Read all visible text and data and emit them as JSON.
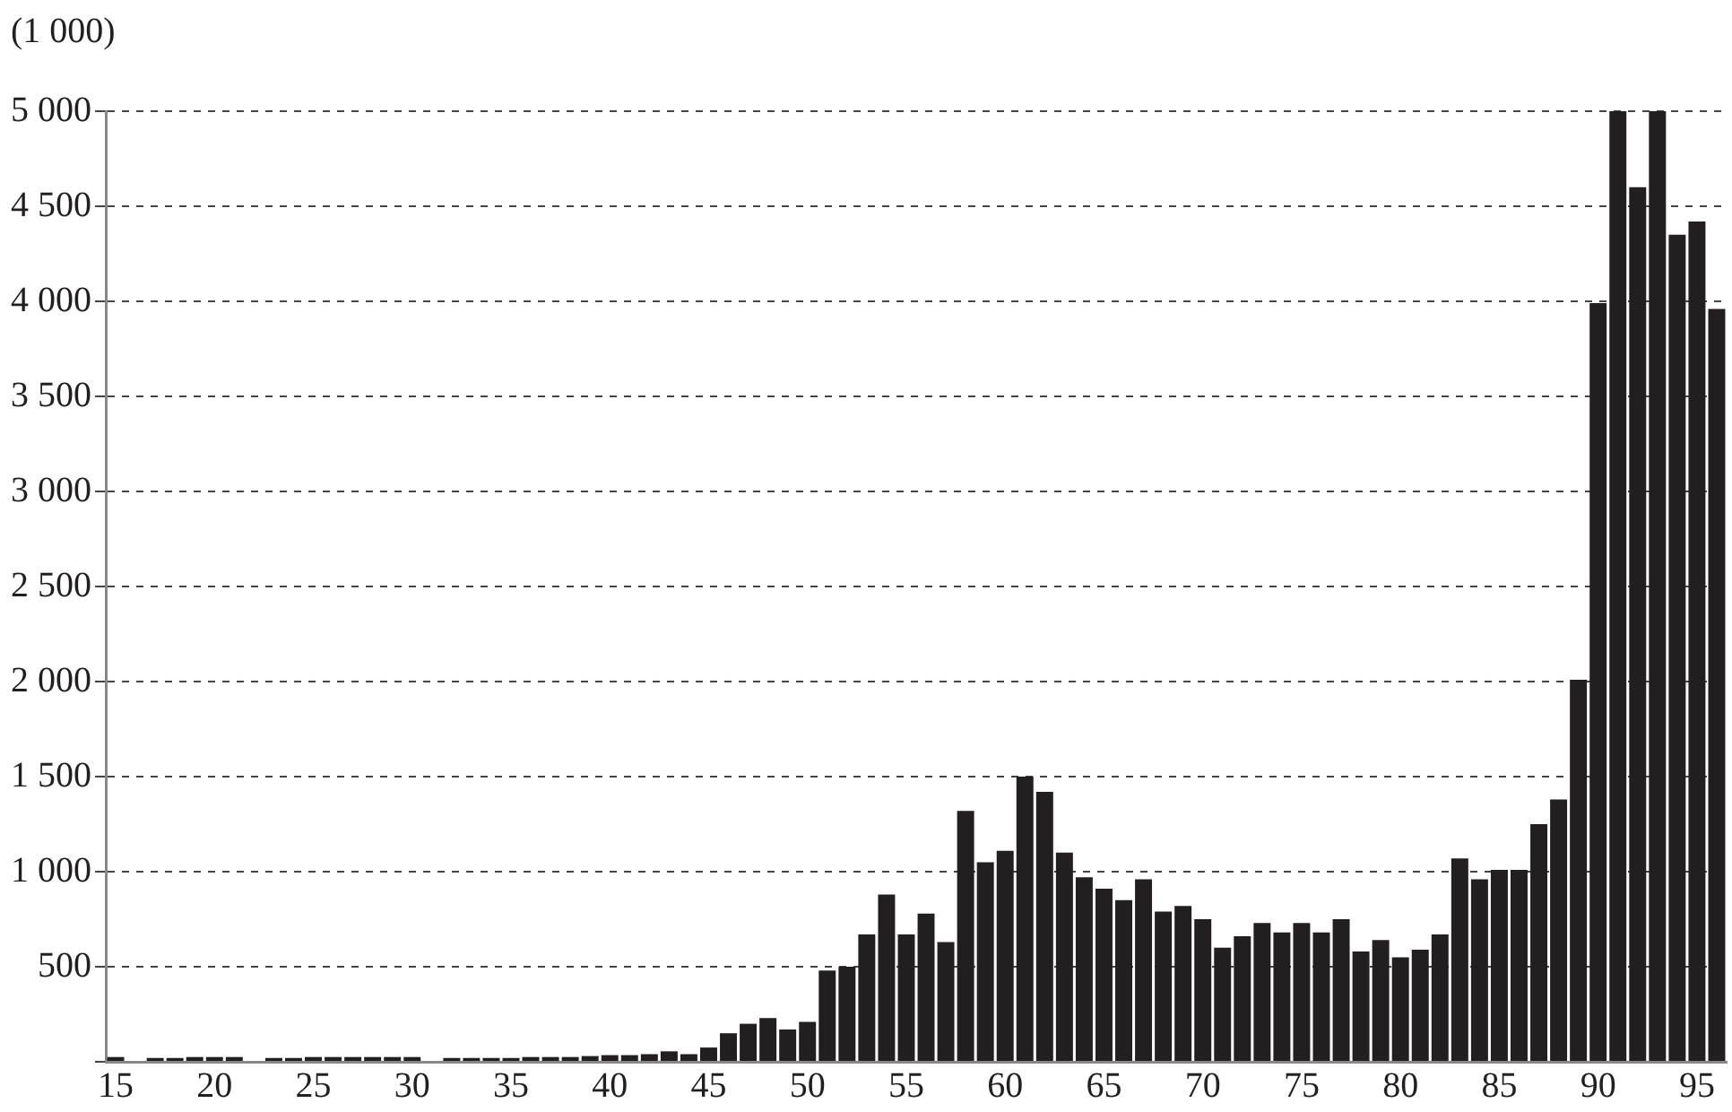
{
  "chart_data": {
    "type": "bar",
    "ylabel": "(1 000)",
    "categories": [
      "15",
      null,
      null,
      null,
      null,
      "20",
      null,
      null,
      null,
      null,
      "25",
      null,
      null,
      null,
      null,
      "30",
      null,
      null,
      null,
      null,
      "35",
      null,
      null,
      null,
      null,
      "40",
      null,
      null,
      null,
      null,
      "45",
      null,
      null,
      null,
      null,
      "50",
      null,
      null,
      null,
      null,
      "55",
      null,
      null,
      null,
      null,
      "60",
      null,
      null,
      null,
      null,
      "65",
      null,
      null,
      null,
      null,
      "70",
      null,
      null,
      null,
      null,
      "75",
      null,
      null,
      null,
      null,
      "80",
      null,
      null,
      null,
      null,
      "85",
      null,
      null,
      null,
      null,
      "90",
      null,
      null,
      null,
      null,
      "95",
      null
    ],
    "values": [
      25,
      null,
      20,
      20,
      25,
      25,
      25,
      null,
      20,
      20,
      25,
      25,
      25,
      25,
      25,
      25,
      null,
      20,
      20,
      20,
      20,
      25,
      25,
      25,
      30,
      35,
      35,
      40,
      55,
      40,
      75,
      150,
      200,
      230,
      170,
      210,
      480,
      500,
      670,
      880,
      670,
      780,
      630,
      1320,
      1050,
      1110,
      1500,
      1420,
      1100,
      970,
      910,
      850,
      960,
      790,
      820,
      750,
      600,
      660,
      730,
      680,
      730,
      680,
      750,
      580,
      640,
      550,
      590,
      670,
      1070,
      960,
      1010,
      1010,
      1250,
      1380,
      2010,
      3990,
      5000,
      4600,
      5000,
      4350,
      4420,
      3960
    ],
    "color": "#231f20",
    "ylim": [
      0,
      5000
    ],
    "yticks": [
      {
        "value": 0,
        "label": null
      },
      500,
      1000,
      1500,
      2000,
      2500,
      3000,
      3500,
      4000,
      4500,
      5000
    ],
    "grid": "y",
    "legend": false
  }
}
